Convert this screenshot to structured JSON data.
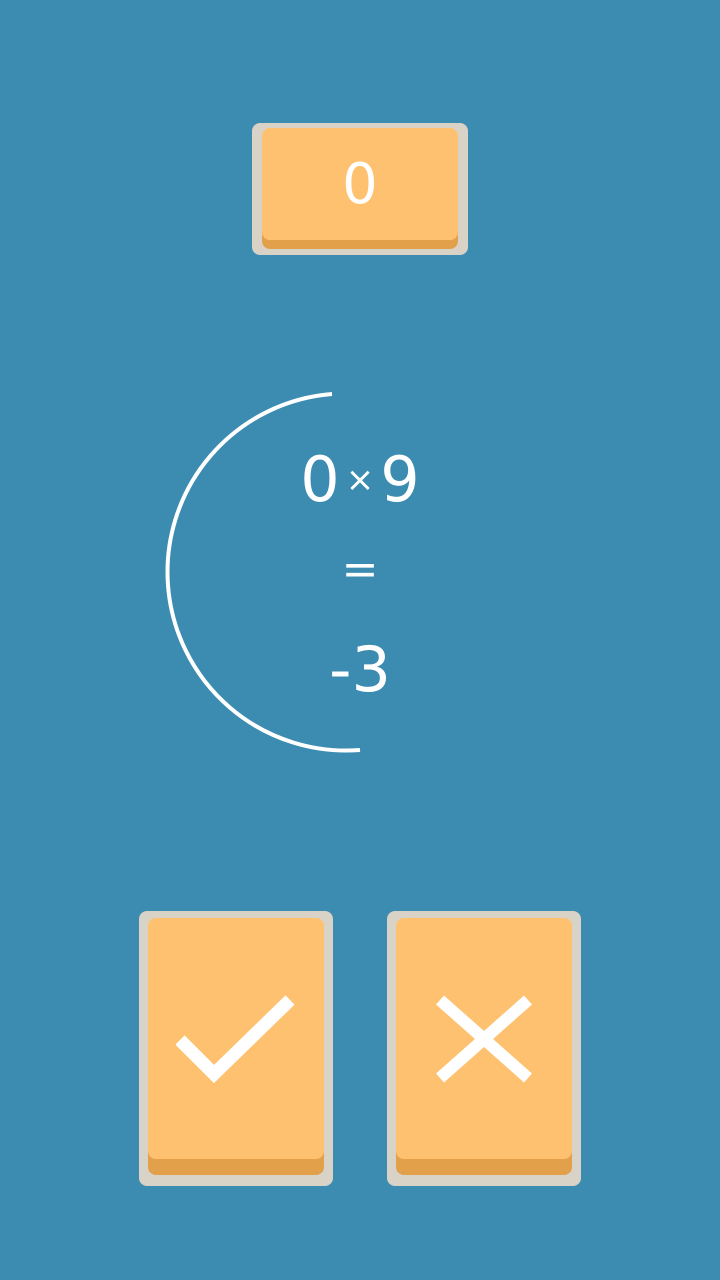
{
  "score": {
    "value": "0"
  },
  "equation": {
    "left_operand": "0",
    "operator": "×",
    "right_operand": "9",
    "equals": "=",
    "result": "-3"
  },
  "buttons": {
    "correct_icon": "check-icon",
    "wrong_icon": "cross-icon"
  },
  "timer": {
    "remaining_fraction": 0.42
  },
  "colors": {
    "background": "#3c8cb2",
    "tile": "#fec16f",
    "tile_shadow": "#e2a04a",
    "tile_frame": "#d9d2c6",
    "foreground": "#ffffff"
  }
}
